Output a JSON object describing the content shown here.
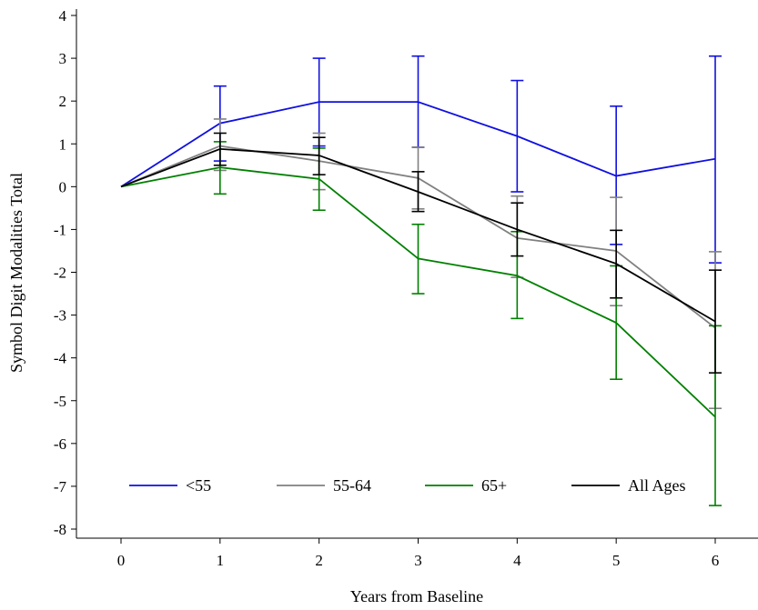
{
  "chart_data": {
    "type": "line",
    "title": "",
    "xlabel": "Years from Baseline",
    "ylabel": "Symbol Digit Modalities Total",
    "x": [
      0,
      1,
      2,
      3,
      4,
      5,
      6
    ],
    "x_ticks": [
      "0",
      "1",
      "2",
      "3",
      "4",
      "5",
      "6"
    ],
    "y_ticks": [
      "4",
      "3",
      "2",
      "1",
      "0",
      "-1",
      "-2",
      "-3",
      "-4",
      "-5",
      "-6",
      "-7",
      "-8"
    ],
    "xlim": [
      -0.8,
      6.5
    ],
    "ylim": [
      -8.2,
      4.1
    ],
    "grid": false,
    "legend_position": "bottom",
    "series": [
      {
        "name": "<55",
        "color": "#1010e0",
        "values": [
          0,
          1.48,
          1.98,
          1.98,
          1.18,
          0.25,
          0.65
        ],
        "err_upper": [
          0,
          2.35,
          3.0,
          3.05,
          2.48,
          1.88,
          3.05
        ],
        "err_lower": [
          0,
          0.6,
          0.95,
          0.92,
          -0.12,
          -1.35,
          -1.78
        ]
      },
      {
        "name": "55-64",
        "color": "#808080",
        "values": [
          0,
          0.95,
          0.6,
          0.2,
          -1.2,
          -1.5,
          -3.3
        ],
        "err_upper": [
          0,
          1.58,
          1.25,
          0.92,
          -0.22,
          -0.25,
          -1.52
        ],
        "err_lower": [
          0,
          0.38,
          -0.07,
          -0.52,
          -2.12,
          -2.78,
          -5.18
        ]
      },
      {
        "name": "65+",
        "color": "#008000",
        "values": [
          0,
          0.45,
          0.18,
          -1.68,
          -2.08,
          -3.18,
          -5.38
        ],
        "err_upper": [
          0,
          1.05,
          0.9,
          -0.88,
          -1.05,
          -1.85,
          -3.25
        ],
        "err_lower": [
          0,
          -0.17,
          -0.55,
          -2.5,
          -3.08,
          -4.5,
          -7.45
        ]
      },
      {
        "name": "All Ages",
        "color": "#000000",
        "values": [
          0,
          0.88,
          0.73,
          -0.12,
          -1.0,
          -1.8,
          -3.15
        ],
        "err_upper": [
          0,
          1.25,
          1.15,
          0.35,
          -0.38,
          -1.02,
          -1.95
        ],
        "err_lower": [
          0,
          0.5,
          0.28,
          -0.58,
          -1.62,
          -2.6,
          -4.35
        ]
      }
    ]
  }
}
